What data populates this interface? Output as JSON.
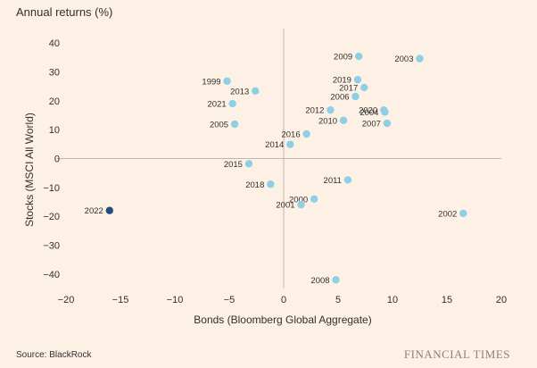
{
  "header": {
    "title": "Annual returns (%)"
  },
  "footer": {
    "source": "Source: BlackRock",
    "brand": "FINANCIAL TIMES"
  },
  "colors": {
    "point": "#8ecfe6",
    "highlight": "#1f4d80",
    "grid": "#d6c8b8",
    "axis": "#c4b6a6"
  },
  "chart_data": {
    "type": "scatter",
    "title": "Annual returns (%)",
    "xlabel": "Bonds (Bloomberg Global Aggregate)",
    "ylabel": "Stocks (MSCI All World)",
    "xlim": [
      -20,
      20
    ],
    "ylim": [
      -45,
      45
    ],
    "xticks": [
      -20,
      -15,
      -10,
      -5,
      0,
      5,
      10,
      15,
      20
    ],
    "yticks": [
      -40,
      -30,
      -20,
      -10,
      0,
      10,
      20,
      30,
      40
    ],
    "grid": false,
    "highlight": "2022",
    "points": [
      {
        "label": "1999",
        "x": -5.2,
        "y": 26.8
      },
      {
        "label": "2000",
        "x": 2.8,
        "y": -14.0
      },
      {
        "label": "2001",
        "x": 1.6,
        "y": -16.0
      },
      {
        "label": "2002",
        "x": 16.5,
        "y": -19.0
      },
      {
        "label": "2003",
        "x": 12.5,
        "y": 34.6
      },
      {
        "label": "2004",
        "x": 9.3,
        "y": 16.1
      },
      {
        "label": "2005",
        "x": -4.5,
        "y": 11.9
      },
      {
        "label": "2006",
        "x": 6.6,
        "y": 21.5
      },
      {
        "label": "2007",
        "x": 9.5,
        "y": 12.2
      },
      {
        "label": "2008",
        "x": 4.8,
        "y": -42.0
      },
      {
        "label": "2009",
        "x": 6.9,
        "y": 35.4
      },
      {
        "label": "2010",
        "x": 5.5,
        "y": 13.2
      },
      {
        "label": "2011",
        "x": 5.9,
        "y": -7.4
      },
      {
        "label": "2012",
        "x": 4.3,
        "y": 16.8
      },
      {
        "label": "2013",
        "x": -2.6,
        "y": 23.4
      },
      {
        "label": "2014",
        "x": 0.6,
        "y": 4.9
      },
      {
        "label": "2015",
        "x": -3.2,
        "y": -1.8
      },
      {
        "label": "2016",
        "x": 2.1,
        "y": 8.5
      },
      {
        "label": "2017",
        "x": 7.4,
        "y": 24.6
      },
      {
        "label": "2018",
        "x": -1.2,
        "y": -8.9
      },
      {
        "label": "2019",
        "x": 6.8,
        "y": 27.3
      },
      {
        "label": "2020",
        "x": 9.2,
        "y": 16.8
      },
      {
        "label": "2021",
        "x": -4.7,
        "y": 19.0
      },
      {
        "label": "2022",
        "x": -16.0,
        "y": -18.0
      }
    ]
  }
}
